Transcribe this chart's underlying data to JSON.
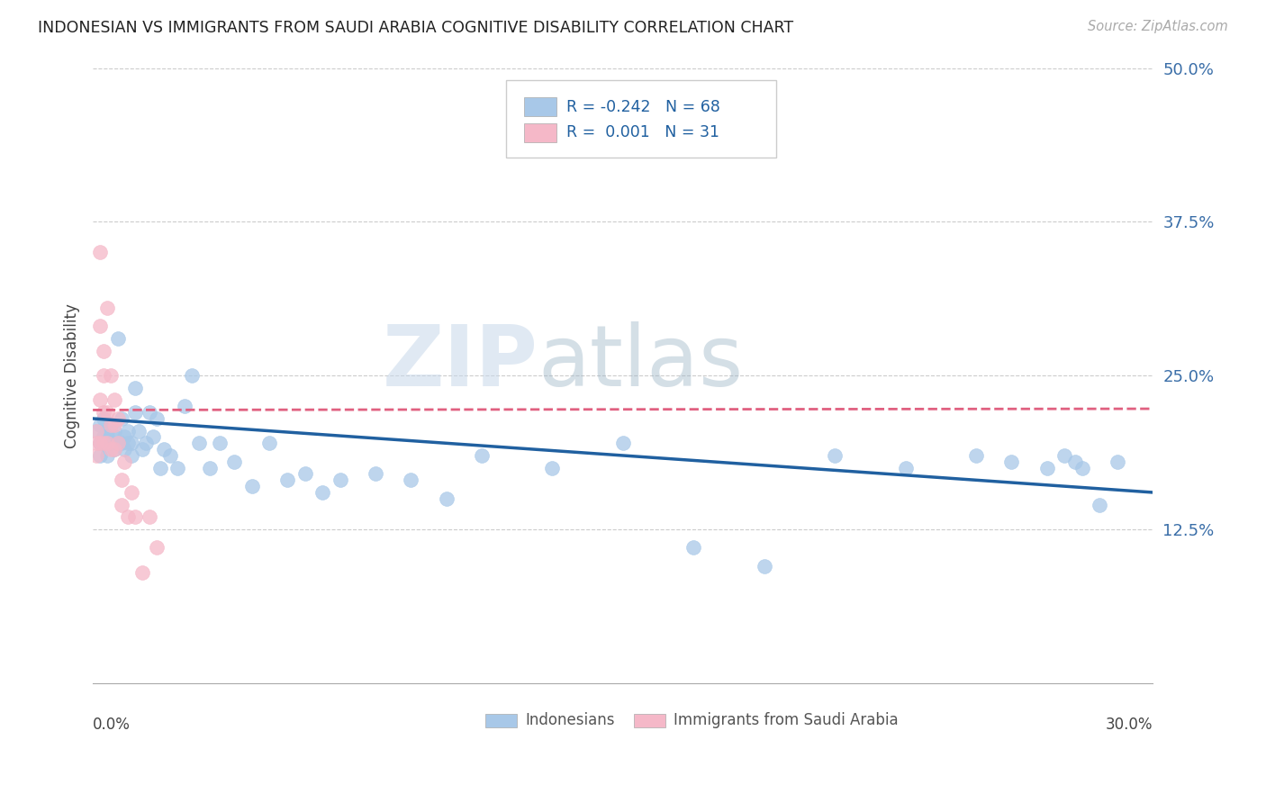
{
  "title": "INDONESIAN VS IMMIGRANTS FROM SAUDI ARABIA COGNITIVE DISABILITY CORRELATION CHART",
  "source": "Source: ZipAtlas.com",
  "ylabel": "Cognitive Disability",
  "xlim": [
    0.0,
    0.3
  ],
  "ylim": [
    0.0,
    0.5
  ],
  "blue_R": "-0.242",
  "blue_N": "68",
  "pink_R": "0.001",
  "pink_N": "31",
  "blue_color": "#a8c8e8",
  "pink_color": "#f5b8c8",
  "blue_line_color": "#2060a0",
  "pink_line_color": "#e06080",
  "watermark_zip": "ZIP",
  "watermark_atlas": "atlas",
  "blue_scatter_x": [
    0.001,
    0.002,
    0.002,
    0.002,
    0.003,
    0.003,
    0.003,
    0.004,
    0.004,
    0.004,
    0.005,
    0.005,
    0.005,
    0.006,
    0.006,
    0.006,
    0.007,
    0.007,
    0.008,
    0.008,
    0.009,
    0.009,
    0.01,
    0.01,
    0.011,
    0.011,
    0.012,
    0.012,
    0.013,
    0.014,
    0.015,
    0.016,
    0.017,
    0.018,
    0.019,
    0.02,
    0.022,
    0.024,
    0.026,
    0.028,
    0.03,
    0.033,
    0.036,
    0.04,
    0.045,
    0.05,
    0.055,
    0.06,
    0.065,
    0.07,
    0.08,
    0.09,
    0.1,
    0.11,
    0.13,
    0.15,
    0.17,
    0.19,
    0.21,
    0.23,
    0.25,
    0.26,
    0.27,
    0.275,
    0.278,
    0.28,
    0.285,
    0.29
  ],
  "blue_scatter_y": [
    0.205,
    0.195,
    0.21,
    0.185,
    0.2,
    0.195,
    0.215,
    0.2,
    0.185,
    0.205,
    0.195,
    0.21,
    0.195,
    0.2,
    0.19,
    0.205,
    0.28,
    0.195,
    0.215,
    0.195,
    0.2,
    0.19,
    0.195,
    0.205,
    0.195,
    0.185,
    0.22,
    0.24,
    0.205,
    0.19,
    0.195,
    0.22,
    0.2,
    0.215,
    0.175,
    0.19,
    0.185,
    0.175,
    0.225,
    0.25,
    0.195,
    0.175,
    0.195,
    0.18,
    0.16,
    0.195,
    0.165,
    0.17,
    0.155,
    0.165,
    0.17,
    0.165,
    0.15,
    0.185,
    0.175,
    0.195,
    0.11,
    0.095,
    0.185,
    0.175,
    0.185,
    0.18,
    0.175,
    0.185,
    0.18,
    0.175,
    0.145,
    0.18
  ],
  "pink_scatter_x": [
    0.001,
    0.001,
    0.001,
    0.002,
    0.002,
    0.002,
    0.002,
    0.003,
    0.003,
    0.003,
    0.003,
    0.004,
    0.004,
    0.004,
    0.005,
    0.005,
    0.005,
    0.006,
    0.006,
    0.006,
    0.007,
    0.007,
    0.008,
    0.008,
    0.009,
    0.01,
    0.011,
    0.012,
    0.014,
    0.016,
    0.018
  ],
  "pink_scatter_y": [
    0.205,
    0.195,
    0.185,
    0.35,
    0.29,
    0.23,
    0.195,
    0.27,
    0.25,
    0.22,
    0.195,
    0.305,
    0.22,
    0.195,
    0.25,
    0.21,
    0.19,
    0.23,
    0.21,
    0.19,
    0.215,
    0.195,
    0.165,
    0.145,
    0.18,
    0.135,
    0.155,
    0.135,
    0.09,
    0.135,
    0.11
  ],
  "blue_trend_x0": 0.0,
  "blue_trend_y0": 0.215,
  "blue_trend_x1": 0.3,
  "blue_trend_y1": 0.155,
  "pink_trend_x0": 0.0,
  "pink_trend_y0": 0.222,
  "pink_trend_x1": 0.3,
  "pink_trend_y1": 0.223
}
